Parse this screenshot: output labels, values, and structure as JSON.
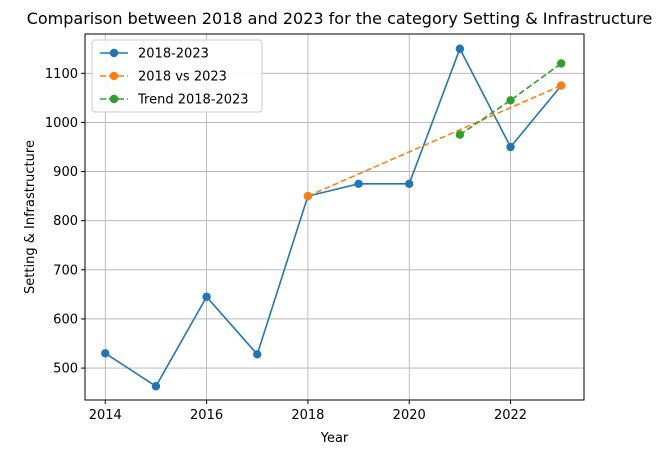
{
  "chart_data": {
    "type": "line",
    "title": "Comparison between 2018 and 2023 for the category Setting & Infrastructure",
    "xlabel": "Year",
    "ylabel": "Setting & Infrastructure",
    "xlim": [
      2013.6,
      2023.45
    ],
    "ylim": [
      435,
      1180
    ],
    "xticks": [
      2014,
      2016,
      2018,
      2020,
      2022
    ],
    "yticks": [
      500,
      600,
      700,
      800,
      900,
      1000,
      1100
    ],
    "grid": true,
    "legend_position": "top-left",
    "series": [
      {
        "name": "2018-2023",
        "color": "#1f77b4",
        "line_style": "solid",
        "marker": "circle",
        "x": [
          2014,
          2015,
          2016,
          2017,
          2018,
          2019,
          2020,
          2021,
          2022,
          2023
        ],
        "y": [
          530,
          463,
          645,
          528,
          850,
          875,
          875,
          1150,
          950,
          1075
        ]
      },
      {
        "name": "2018 vs 2023",
        "color": "#ff7f0e",
        "line_style": "dashed",
        "marker": "circle",
        "x": [
          2018,
          2023
        ],
        "y": [
          850,
          1075
        ]
      },
      {
        "name": "Trend 2018-2023",
        "color": "#2ca02c",
        "line_style": "dashed",
        "marker": "circle",
        "x": [
          2021,
          2022,
          2023
        ],
        "y": [
          975,
          1045,
          1120
        ]
      }
    ]
  }
}
